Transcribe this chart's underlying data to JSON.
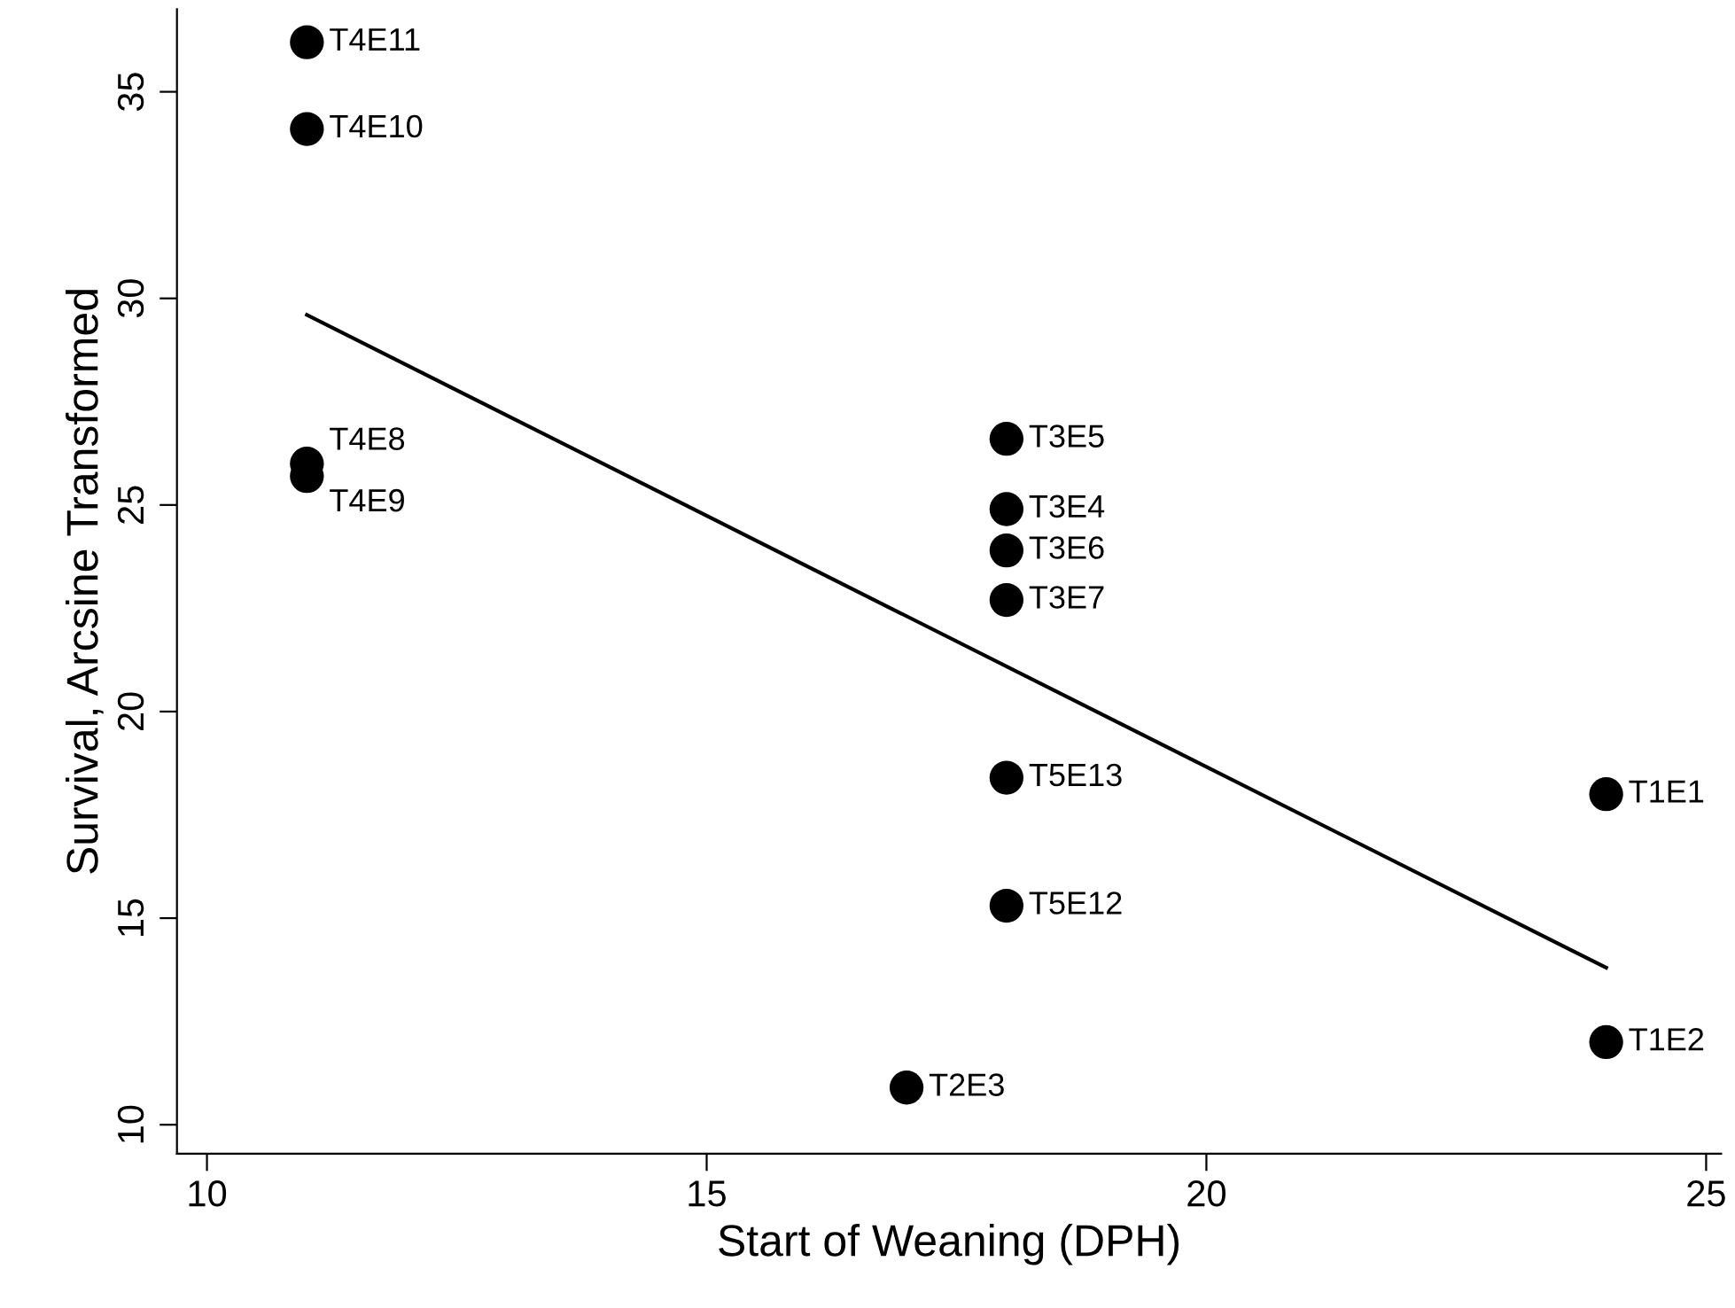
{
  "chart_data": {
    "type": "scatter",
    "xlabel": "Start of Weaning (DPH)",
    "ylabel": "Survival, Arcsine Transformed",
    "xlim": [
      9.7,
      25.15
    ],
    "xticks": [
      10,
      15,
      20,
      25
    ],
    "ylim": [
      9.3,
      37.0
    ],
    "yticks": [
      10,
      15,
      20,
      25,
      30,
      35
    ],
    "grid": false,
    "legend": false,
    "series": [
      {
        "color": "#000000",
        "marker": "circle",
        "x": [
          11,
          11,
          11,
          11,
          18,
          18,
          18,
          18,
          18,
          18,
          17,
          24,
          24
        ],
        "values": [
          36.2,
          34.1,
          26.0,
          25.7,
          26.6,
          24.9,
          23.9,
          22.7,
          18.4,
          15.3,
          10.9,
          18.0,
          12.0
        ]
      },
      {
        "type": "line",
        "color": "#000000",
        "marker": "none",
        "line_style": "solid",
        "x": [
          11,
          24
        ],
        "values": [
          29.6,
          13.8
        ]
      }
    ],
    "annotations": [
      {
        "text": "T4E11",
        "x": 11,
        "y": 36.2
      },
      {
        "text": "T4E10",
        "x": 11,
        "y": 34.1
      },
      {
        "text": "T4E8",
        "x": 11,
        "y": 26.0
      },
      {
        "text": "T4E9",
        "x": 11,
        "y": 25.7
      },
      {
        "text": "T3E5",
        "x": 18,
        "y": 26.6
      },
      {
        "text": "T3E4",
        "x": 18,
        "y": 24.9
      },
      {
        "text": "T3E6",
        "x": 18,
        "y": 23.9
      },
      {
        "text": "T3E7",
        "x": 18,
        "y": 22.7
      },
      {
        "text": "T5E13",
        "x": 18,
        "y": 18.4
      },
      {
        "text": "T5E12",
        "x": 18,
        "y": 15.3
      },
      {
        "text": "T2E3",
        "x": 17,
        "y": 10.9
      },
      {
        "text": "T1E1",
        "x": 24,
        "y": 18.0
      },
      {
        "text": "T1E2",
        "x": 24,
        "y": 12.0
      }
    ]
  }
}
